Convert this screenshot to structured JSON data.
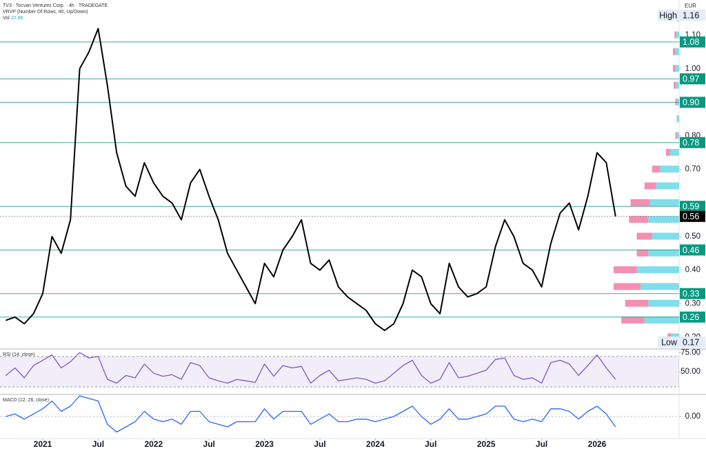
{
  "chart_data": [
    {
      "type": "line",
      "title": "TV3 · Tocvan Ventures Corp. · 4h · TRADEGATE",
      "indicator": "VRVP (Number Of Rows, 40, Up/Down)",
      "volume_label": "Vol",
      "volume_value": "22.8K",
      "currency": "EUR",
      "color": "#000000",
      "x": [
        "2020-09",
        "2020-10",
        "2020-11",
        "2020-12",
        "2021-01",
        "2021-02",
        "2021-03",
        "2021-04",
        "2021-05",
        "2021-06",
        "2021-07",
        "2021-08",
        "2021-09",
        "2021-10",
        "2021-11",
        "2021-12",
        "2022-01",
        "2022-02",
        "2022-03",
        "2022-04",
        "2022-05",
        "2022-06",
        "2022-07",
        "2022-08",
        "2022-09",
        "2022-10",
        "2022-11",
        "2022-12",
        "2023-01",
        "2023-02",
        "2023-03",
        "2023-04",
        "2023-05",
        "2023-06",
        "2023-07",
        "2023-08",
        "2023-09",
        "2023-10",
        "2023-11",
        "2023-12",
        "2024-01",
        "2024-02",
        "2024-03",
        "2024-04",
        "2024-05",
        "2024-06",
        "2024-07",
        "2024-08",
        "2024-09",
        "2024-10",
        "2024-11",
        "2024-12",
        "2025-01",
        "2025-02",
        "2025-03",
        "2025-04",
        "2025-05",
        "2025-06",
        "2025-07",
        "2025-08",
        "2025-09",
        "2025-10",
        "2025-11",
        "2025-12",
        "2026-01",
        "2026-02",
        "2026-03"
      ],
      "values": [
        0.25,
        0.26,
        0.24,
        0.27,
        0.33,
        0.5,
        0.45,
        0.55,
        1.0,
        1.05,
        1.12,
        0.95,
        0.75,
        0.65,
        0.62,
        0.72,
        0.66,
        0.62,
        0.6,
        0.55,
        0.66,
        0.7,
        0.62,
        0.55,
        0.45,
        0.4,
        0.35,
        0.3,
        0.42,
        0.38,
        0.46,
        0.5,
        0.55,
        0.42,
        0.4,
        0.43,
        0.35,
        0.32,
        0.3,
        0.28,
        0.24,
        0.22,
        0.24,
        0.3,
        0.4,
        0.38,
        0.3,
        0.27,
        0.42,
        0.35,
        0.32,
        0.33,
        0.35,
        0.47,
        0.55,
        0.5,
        0.42,
        0.4,
        0.35,
        0.48,
        0.57,
        0.6,
        0.52,
        0.62,
        0.75,
        0.72,
        0.56
      ],
      "ylim": [
        0.165,
        1.205
      ],
      "yticks": [
        {
          "value": 1.1,
          "label": "1.10"
        },
        {
          "value": 1.0,
          "label": "1.00"
        },
        {
          "value": 0.8,
          "label": "0.80"
        },
        {
          "value": 0.7,
          "label": "0.70"
        },
        {
          "value": 0.5,
          "label": "0.50"
        },
        {
          "value": 0.4,
          "label": "0.40"
        },
        {
          "value": 0.3,
          "label": "0.30"
        },
        {
          "value": 0.2,
          "label": "0.20"
        }
      ],
      "xticks": [
        {
          "value": "2021-01",
          "label": "2021"
        },
        {
          "value": "2021-07",
          "label": "Jul"
        },
        {
          "value": "2022-01",
          "label": "2022"
        },
        {
          "value": "2022-07",
          "label": "Jul"
        },
        {
          "value": "2023-01",
          "label": "2023"
        },
        {
          "value": "2023-07",
          "label": "Jul"
        },
        {
          "value": "2024-01",
          "label": "2024"
        },
        {
          "value": "2024-07",
          "label": "Jul"
        },
        {
          "value": "2025-01",
          "label": "2025"
        },
        {
          "value": "2025-07",
          "label": "Jul"
        },
        {
          "value": "2026-01",
          "label": "2026"
        }
      ],
      "levels": [
        {
          "value": 1.16,
          "label": "1.16",
          "tag": "High",
          "color": "#e3ecf7"
        },
        {
          "value": 1.08,
          "label": "1.08",
          "color": "#089981"
        },
        {
          "value": 0.97,
          "label": "0.97",
          "color": "#089981"
        },
        {
          "value": 0.9,
          "label": "0.90",
          "color": "#089981"
        },
        {
          "value": 0.78,
          "label": "0.78",
          "color": "#089981"
        },
        {
          "value": 0.59,
          "label": "0.59",
          "color": "#089981"
        },
        {
          "value": 0.56,
          "label": "0.56",
          "color": "#000000"
        },
        {
          "value": 0.46,
          "label": "0.46",
          "color": "#089981"
        },
        {
          "value": 0.33,
          "label": "0.33",
          "color": "#089981"
        },
        {
          "value": 0.26,
          "label": "0.26",
          "color": "#089981"
        },
        {
          "value": 0.17,
          "label": "0.17",
          "tag": "Low",
          "color": "#e3ecf7"
        }
      ],
      "volume_profile": {
        "levels": [
          0.2,
          0.25,
          0.3,
          0.35,
          0.4,
          0.45,
          0.5,
          0.55,
          0.6,
          0.65,
          0.7,
          0.75,
          0.8,
          0.85,
          0.9,
          0.95,
          1.0,
          1.05,
          1.1,
          1.15
        ],
        "up": [
          10,
          45,
          40,
          50,
          55,
          40,
          35,
          40,
          38,
          30,
          25,
          12,
          3,
          2,
          3,
          4,
          5,
          5,
          4,
          2
        ],
        "down": [
          5,
          30,
          30,
          35,
          30,
          15,
          20,
          25,
          25,
          15,
          10,
          5,
          2,
          1,
          2,
          3,
          3,
          3,
          2,
          1
        ],
        "up_color": "#80deea",
        "down_color": "#f48fb1"
      }
    },
    {
      "type": "line",
      "title": "RSI (14, close)",
      "color": "#7e57c2",
      "values": [
        45,
        55,
        42,
        58,
        65,
        72,
        55,
        63,
        75,
        68,
        70,
        40,
        35,
        45,
        42,
        60,
        48,
        44,
        46,
        40,
        62,
        58,
        42,
        38,
        35,
        40,
        38,
        36,
        60,
        44,
        58,
        55,
        57,
        35,
        45,
        52,
        38,
        40,
        42,
        40,
        35,
        38,
        48,
        58,
        65,
        45,
        35,
        40,
        62,
        42,
        44,
        48,
        52,
        66,
        68,
        45,
        40,
        42,
        35,
        62,
        65,
        60,
        45,
        58,
        72,
        55,
        40
      ],
      "ylim": [
        22,
        78
      ],
      "yticks": [
        {
          "value": 75,
          "label": "75.00"
        },
        {
          "value": 50,
          "label": "50.00"
        }
      ],
      "band": [
        30,
        70
      ]
    },
    {
      "type": "line",
      "title": "MACD (12, 26, close)",
      "color": "#2962ff",
      "values": [
        0.0,
        0.01,
        -0.01,
        0.01,
        0.03,
        0.06,
        0.02,
        0.04,
        0.08,
        0.07,
        0.06,
        -0.03,
        -0.06,
        -0.04,
        -0.02,
        0.02,
        -0.01,
        -0.02,
        -0.01,
        -0.03,
        0.02,
        0.02,
        -0.02,
        -0.03,
        -0.04,
        -0.02,
        -0.02,
        -0.02,
        0.03,
        -0.01,
        0.02,
        0.02,
        0.02,
        -0.03,
        -0.01,
        0.01,
        -0.02,
        -0.02,
        -0.01,
        -0.01,
        -0.02,
        -0.01,
        0.0,
        0.02,
        0.04,
        0.0,
        -0.03,
        -0.01,
        0.03,
        -0.01,
        -0.01,
        0.0,
        0.01,
        0.04,
        0.04,
        -0.01,
        -0.02,
        -0.01,
        -0.02,
        0.03,
        0.03,
        0.02,
        -0.01,
        0.02,
        0.04,
        0.01,
        -0.04
      ],
      "ylim": [
        -0.08,
        0.08
      ],
      "yticks": [
        {
          "value": 0,
          "label": "0.00"
        }
      ]
    }
  ]
}
